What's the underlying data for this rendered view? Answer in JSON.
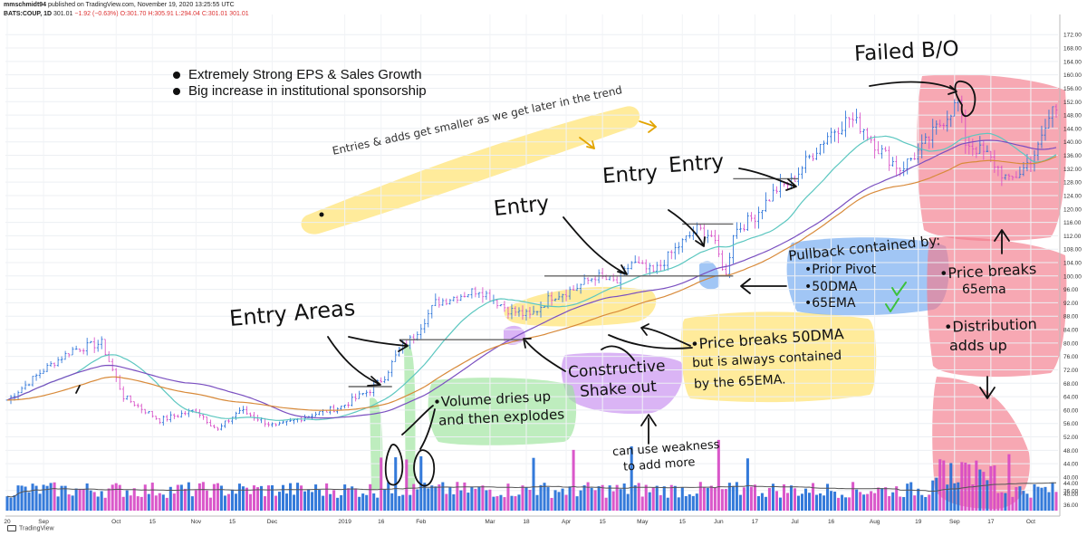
{
  "header": {
    "line1_user": "mmschmidt94",
    "line1_rest": " published on TradingView.com, November 19, 2020 13:25:55 UTC",
    "symbol": "BATS:COUP, 1D",
    "price": "301.01",
    "change": "−1.92 (−0.63%)",
    "ohlc": "O:301.70 H:305.91 L:294.04 C:301.01"
  },
  "notes": {
    "bullet1": "Extremely Strong EPS & Sales Growth",
    "bullet2": "Big increase in institutional sponsorship"
  },
  "annotations": {
    "entries_smaller": "Entries & adds get smaller as we get later in the trend",
    "entry_areas": "Entry Areas",
    "entry1": "Entry",
    "entry2": "Entry",
    "entry3": "Entry",
    "failed_bo": "Failed B/O",
    "pullback_title": "Pullback contained by:",
    "pullback_items": [
      "•Prior Pivot",
      "•50DMA",
      "•65EMA"
    ],
    "volume_note": [
      "•Volume dries up",
      "and then explodes"
    ],
    "constructive": [
      "Constructive",
      "Shake out"
    ],
    "price_breaks_50": [
      "•Price breaks 50DMA",
      "but is always contained",
      "by the 65EMA."
    ],
    "price_breaks_65": [
      "•Price breaks",
      "65ema"
    ],
    "distribution": [
      "•Distribution",
      "adds up"
    ],
    "weakness": [
      "can use weakness",
      "to add more"
    ]
  },
  "branding": {
    "logo_text": "TradingView"
  },
  "colors": {
    "up_candle": "#1e6bd6",
    "down_candle": "#d646c4",
    "ma_teal": "#5cc7c0",
    "ma_purple": "#7a4fc0",
    "ema_orange": "#d88a3a",
    "vol_avg": "#555555",
    "hl_yellow": "#ffe066",
    "hl_blue": "#6fa8f0",
    "hl_purple": "#c68cf0",
    "hl_green": "#9be39b",
    "hl_red": "#f37a8a"
  },
  "chart_data": {
    "type": "candlestick",
    "title": "",
    "xlabel": "",
    "ylabel": "",
    "ylim": [
      30,
      178
    ],
    "y_ticks": [
      172,
      168,
      164,
      160,
      156,
      152,
      148,
      144,
      140,
      136,
      132,
      128,
      124,
      120,
      116,
      112,
      108,
      104,
      100,
      96,
      92,
      88,
      84,
      80,
      76,
      72,
      68,
      64,
      60,
      56,
      52,
      48,
      44,
      40,
      36
    ],
    "y_tick_labels": [
      "172.00",
      "168.00",
      "164.00",
      "160.00",
      "156.00",
      "152.00",
      "148.00",
      "144.00",
      "140.00",
      "136.00",
      "132.00",
      "128.00",
      "124.00",
      "120.00",
      "116.00",
      "112.00",
      "108.00",
      "104.00",
      "100.00",
      "96.00",
      "92.00",
      "88.00",
      "84.00",
      "80.00",
      "76.00",
      "72.00",
      "68.00",
      "64.00",
      "60.00",
      "56.00",
      "52.00",
      "48.00",
      "44.00",
      "40.00",
      "36.00"
    ],
    "x_ticks": [
      {
        "label": "20",
        "day": 0
      },
      {
        "label": "Sep",
        "day": 10
      },
      {
        "label": "Oct",
        "day": 30
      },
      {
        "label": "15",
        "day": 40
      },
      {
        "label": "Nov",
        "day": 52
      },
      {
        "label": "15",
        "day": 62
      },
      {
        "label": "Dec",
        "day": 73
      },
      {
        "label": "2019",
        "day": 93
      },
      {
        "label": "16",
        "day": 103
      },
      {
        "label": "Feb",
        "day": 114
      },
      {
        "label": "Mar",
        "day": 133
      },
      {
        "label": "18",
        "day": 143
      },
      {
        "label": "Apr",
        "day": 154
      },
      {
        "label": "15",
        "day": 164
      },
      {
        "label": "May",
        "day": 175
      },
      {
        "label": "15",
        "day": 186
      },
      {
        "label": "Jun",
        "day": 196
      },
      {
        "label": "17",
        "day": 206
      },
      {
        "label": "Jul",
        "day": 217
      },
      {
        "label": "16",
        "day": 227
      },
      {
        "label": "Aug",
        "day": 239
      },
      {
        "label": "19",
        "day": 251
      },
      {
        "label": "Sep",
        "day": 261
      },
      {
        "label": "17",
        "day": 271
      },
      {
        "label": "Oct",
        "day": 282
      }
    ],
    "num_days": 290,
    "anchors": [
      [
        0,
        63
      ],
      [
        10,
        72
      ],
      [
        18,
        78
      ],
      [
        26,
        80
      ],
      [
        32,
        64
      ],
      [
        42,
        57
      ],
      [
        52,
        60
      ],
      [
        58,
        54
      ],
      [
        64,
        60
      ],
      [
        74,
        55
      ],
      [
        82,
        58
      ],
      [
        92,
        61
      ],
      [
        100,
        66
      ],
      [
        104,
        70
      ],
      [
        108,
        78
      ],
      [
        112,
        82
      ],
      [
        118,
        92
      ],
      [
        124,
        94
      ],
      [
        130,
        96
      ],
      [
        138,
        90
      ],
      [
        144,
        88
      ],
      [
        150,
        94
      ],
      [
        156,
        96
      ],
      [
        162,
        100
      ],
      [
        168,
        98
      ],
      [
        172,
        104
      ],
      [
        178,
        101
      ],
      [
        184,
        108
      ],
      [
        190,
        114
      ],
      [
        194,
        112
      ],
      [
        198,
        100
      ],
      [
        200,
        113
      ],
      [
        206,
        118
      ],
      [
        212,
        126
      ],
      [
        216,
        128
      ],
      [
        220,
        134
      ],
      [
        226,
        142
      ],
      [
        232,
        147
      ],
      [
        236,
        144
      ],
      [
        240,
        138
      ],
      [
        246,
        132
      ],
      [
        252,
        138
      ],
      [
        256,
        144
      ],
      [
        262,
        152
      ],
      [
        264,
        140
      ],
      [
        270,
        136
      ],
      [
        276,
        128
      ],
      [
        280,
        132
      ],
      [
        284,
        138
      ],
      [
        288,
        150
      ]
    ],
    "volume_axis": {
      "labels": [
        "44.00",
        "40.00",
        "36.00"
      ]
    },
    "pivot_levels": [
      {
        "price": 67,
        "from_day": 94,
        "to_day": 106
      },
      {
        "price": 81,
        "from_day": 108,
        "to_day": 142
      },
      {
        "price": 100,
        "from_day": 148,
        "to_day": 200
      },
      {
        "price": 115.5,
        "from_day": 186,
        "to_day": 200
      },
      {
        "price": 129,
        "from_day": 200,
        "to_day": 218
      }
    ],
    "moving_averages": [
      "50DMA",
      "65EMA"
    ]
  }
}
